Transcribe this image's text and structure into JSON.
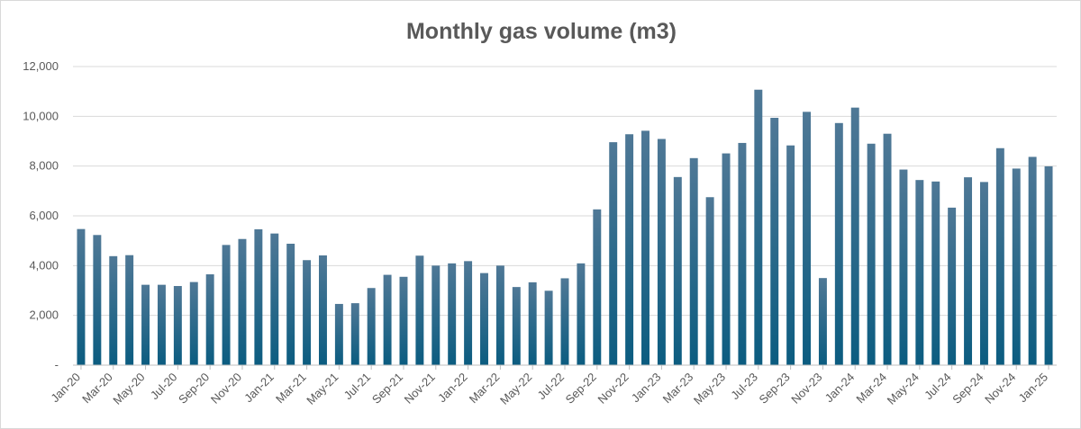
{
  "chart_data": {
    "type": "bar",
    "title": "Monthly gas volume (m3)",
    "xlabel": "",
    "ylabel": "",
    "ylim": [
      0,
      12000
    ],
    "yticks": [
      0,
      2000,
      4000,
      6000,
      8000,
      10000,
      12000
    ],
    "ytick_labels": [
      "-",
      "2,000",
      "4,000",
      "6,000",
      "8,000",
      "10,000",
      "12,000"
    ],
    "grid": true,
    "bar_color_top": "#4f7896",
    "bar_color_bottom": "#0b5c80",
    "categories": [
      "Jan-20",
      "Feb-20",
      "Mar-20",
      "Apr-20",
      "May-20",
      "Jun-20",
      "Jul-20",
      "Aug-20",
      "Sep-20",
      "Oct-20",
      "Nov-20",
      "Dec-20",
      "Jan-21",
      "Feb-21",
      "Mar-21",
      "Apr-21",
      "May-21",
      "Jun-21",
      "Jul-21",
      "Aug-21",
      "Sep-21",
      "Oct-21",
      "Nov-21",
      "Dec-21",
      "Jan-22",
      "Feb-22",
      "Mar-22",
      "Apr-22",
      "May-22",
      "Jun-22",
      "Jul-22",
      "Aug-22",
      "Sep-22",
      "Oct-22",
      "Nov-22",
      "Dec-22",
      "Jan-23",
      "Feb-23",
      "Mar-23",
      "Apr-23",
      "May-23",
      "Jun-23",
      "Jul-23",
      "Aug-23",
      "Sep-23",
      "Oct-23",
      "Nov-23",
      "Dec-23",
      "Jan-24",
      "Feb-24",
      "Mar-24",
      "Apr-24",
      "May-24",
      "Jun-24",
      "Jul-24",
      "Aug-24",
      "Sep-24",
      "Oct-24",
      "Nov-24",
      "Dec-24",
      "Jan-25"
    ],
    "visible_xtick_labels": [
      "Jan-20",
      "Mar-20",
      "May-20",
      "Jul-20",
      "Sep-20",
      "Nov-20",
      "Jan-21",
      "Mar-21",
      "May-21",
      "Jul-21",
      "Sep-21",
      "Nov-21",
      "Jan-22",
      "Mar-22",
      "May-22",
      "Jul-22",
      "Sep-22",
      "Nov-22",
      "Jan-23",
      "Mar-23",
      "May-23",
      "Jul-23",
      "Sep-23",
      "Nov-23",
      "Jan-24",
      "Mar-24",
      "May-24",
      "Jul-24",
      "Sep-24",
      "Nov-24",
      "Jan-25"
    ],
    "values": [
      5470,
      5230,
      4380,
      4420,
      3230,
      3230,
      3180,
      3340,
      3650,
      4830,
      5070,
      5460,
      5290,
      4880,
      4220,
      4410,
      2460,
      2490,
      3100,
      3630,
      3550,
      4400,
      4000,
      4090,
      4180,
      3700,
      4000,
      3140,
      3330,
      2990,
      3490,
      4090,
      6260,
      8960,
      9280,
      9420,
      9090,
      7560,
      8320,
      6750,
      8510,
      8930,
      11070,
      9940,
      8830,
      10180,
      3500,
      9730,
      10350,
      8900,
      9300,
      7860,
      7440,
      7380,
      6330,
      7550,
      7360,
      8720,
      7900,
      8370,
      7990
    ]
  }
}
